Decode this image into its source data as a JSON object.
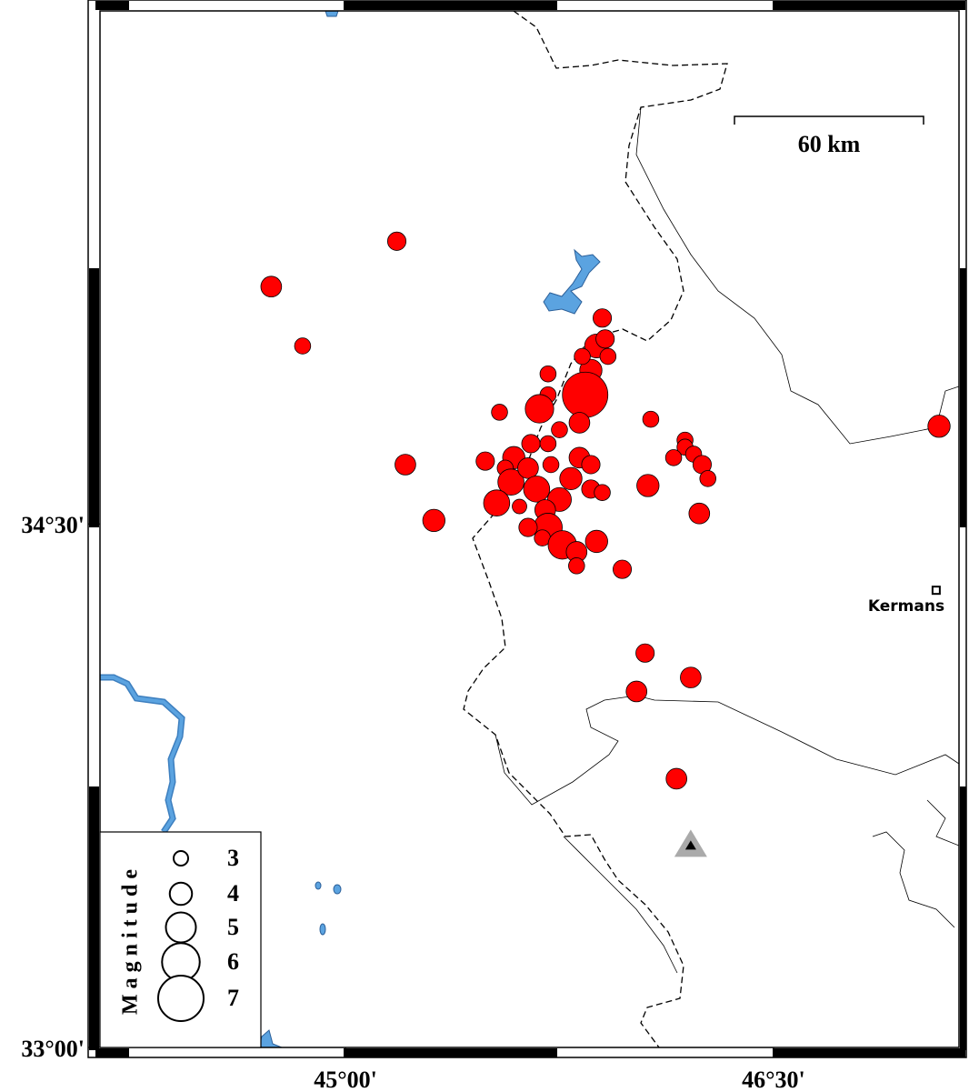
{
  "chart_data": {
    "type": "map",
    "xlim": [
      44.14,
      47.15
    ],
    "ylim": [
      33.0,
      35.97
    ],
    "xticks": [
      {
        "value": 45,
        "label": "45°00'"
      },
      {
        "value": 46.5,
        "label": "46°30'"
      }
    ],
    "yticks": [
      {
        "value": 33,
        "label": "33°00'"
      },
      {
        "value": 34.5,
        "label": "34°30'"
      }
    ],
    "color": "#ff0000",
    "events": {
      "lon": [
        45.18,
        44.74,
        44.85,
        45.21,
        45.31,
        45.54,
        45.49,
        45.9,
        45.88,
        45.91,
        45.92,
        45.86,
        45.83,
        45.71,
        45.84,
        45.71,
        45.68,
        45.82,
        45.75,
        45.65,
        45.71,
        45.59,
        45.56,
        45.58,
        45.53,
        45.64,
        45.67,
        45.72,
        45.82,
        45.86,
        45.79,
        45.75,
        45.7,
        45.71,
        45.64,
        45.69,
        45.76,
        45.81,
        45.81,
        45.88,
        45.86,
        45.9,
        45.61,
        45.97,
        46.07,
        46.06,
        46.19,
        46.19,
        46.15,
        46.22,
        46.25,
        46.27,
        46.24,
        47.08,
        46.05,
        46.21,
        46.02,
        46.16
      ],
      "lat": [
        35.31,
        35.18,
        35.01,
        34.67,
        34.51,
        34.82,
        34.68,
        35.09,
        35.01,
        35.03,
        34.98,
        34.94,
        34.98,
        34.93,
        34.87,
        34.87,
        34.83,
        34.79,
        34.77,
        34.73,
        34.73,
        34.69,
        34.66,
        34.62,
        34.56,
        34.66,
        34.6,
        34.67,
        34.69,
        34.67,
        34.63,
        34.57,
        34.54,
        34.49,
        34.49,
        34.46,
        34.44,
        34.42,
        34.38,
        34.45,
        34.6,
        34.59,
        34.55,
        34.37,
        34.8,
        34.61,
        34.74,
        34.72,
        34.69,
        34.7,
        34.67,
        34.63,
        34.53,
        34.78,
        34.13,
        34.06,
        34.02,
        33.77
      ],
      "mag": [
        3.5,
        3.8,
        3.2,
        3.8,
        4.0,
        3.2,
        3.5,
        3.5,
        4.2,
        3.5,
        3.2,
        4.0,
        3.2,
        3.2,
        7.0,
        3.2,
        4.8,
        3.8,
        3.2,
        3.5,
        3.2,
        4.0,
        3.2,
        4.5,
        4.5,
        3.8,
        4.5,
        3.2,
        3.8,
        3.5,
        4.0,
        4.2,
        3.8,
        4.8,
        3.5,
        3.2,
        4.8,
        3.8,
        3.2,
        4.0,
        3.5,
        3.2,
        3.0,
        3.5,
        3.2,
        4.0,
        3.2,
        3.2,
        3.2,
        3.2,
        3.5,
        3.2,
        3.8,
        4.0,
        3.5,
        3.8,
        3.8,
        3.8
      ]
    },
    "station": {
      "lon": 46.21,
      "lat": 33.58
    },
    "city": {
      "label": "Kermans",
      "lon": 47.07,
      "lat": 34.31
    },
    "scale_bar": "60 km",
    "legend": {
      "title": "Magnitude",
      "sizes": [
        3,
        4,
        5,
        6,
        7
      ]
    }
  }
}
